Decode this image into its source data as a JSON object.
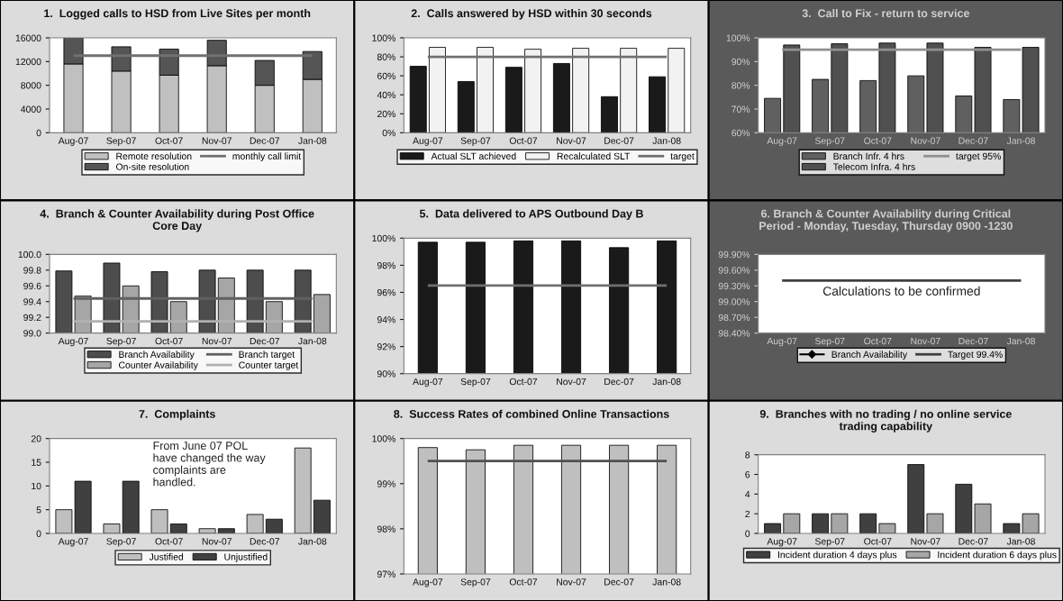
{
  "chart_data": [
    {
      "type": "bar",
      "title": "1.  Logged calls to HSD from Live Sites per month",
      "categories": [
        "Aug-07",
        "Sep-07",
        "Oct-07",
        "Nov-07",
        "Dec-07",
        "Jan-08"
      ],
      "stacked": true,
      "series": [
        {
          "name": "Remote resolution",
          "color": "#c0c0c0",
          "values": [
            11600,
            10400,
            9700,
            11300,
            8000,
            9000
          ]
        },
        {
          "name": "On-site resolution",
          "color": "#555555",
          "values": [
            4400,
            4100,
            4400,
            4300,
            4200,
            4700
          ]
        }
      ],
      "ylim": [
        0,
        16000
      ],
      "yticks": [
        0,
        4000,
        8000,
        12000,
        16000
      ],
      "ref_lines": [
        {
          "axis": "y",
          "value": 13000,
          "label": "monthly call limit",
          "color": "#707070"
        }
      ],
      "legend": "bottom"
    },
    {
      "type": "bar",
      "title": "2.  Calls answered by HSD within 30 seconds",
      "categories": [
        "Aug-07",
        "Sep-07",
        "Oct-07",
        "Nov-07",
        "Dec-07",
        "Jan-08"
      ],
      "series": [
        {
          "name": "Actual SLT achieved",
          "color": "#1a1a1a",
          "values": [
            70,
            54,
            69,
            73,
            38,
            59
          ]
        },
        {
          "name": "Recalculated SLT",
          "color": "#f2f2f2",
          "values": [
            90,
            90,
            88,
            89,
            89,
            89
          ]
        }
      ],
      "ylim": [
        0,
        100
      ],
      "yticks": [
        {
          "value": 0,
          "label": "0%"
        },
        {
          "value": 20,
          "label": "20%"
        },
        {
          "value": 40,
          "label": "40%"
        },
        {
          "value": 60,
          "label": "60%"
        },
        {
          "value": 80,
          "label": "80%"
        },
        {
          "value": 100,
          "label": "100%"
        }
      ],
      "ref_lines": [
        {
          "axis": "y",
          "value": 80,
          "label": "target",
          "color": "#707070"
        }
      ],
      "legend": "bottom"
    },
    {
      "type": "bar",
      "title": "3.  Call to Fix - return to service",
      "categories": [
        "Aug-07",
        "Sep-07",
        "Oct-07",
        "Nov-07",
        "Dec-07",
        "Jan-08"
      ],
      "series": [
        {
          "name": "Branch Infr. 4 hrs",
          "color": "#606060",
          "values": [
            74.5,
            82.5,
            82,
            84,
            75.5,
            74
          ]
        },
        {
          "name": "Telecom Infra. 4 hrs",
          "color": "#505050",
          "values": [
            97,
            97.5,
            97.8,
            97.8,
            96,
            96
          ]
        }
      ],
      "ylim": [
        60,
        100
      ],
      "yticks": [
        {
          "value": 60,
          "label": "60%"
        },
        {
          "value": 70,
          "label": "70%"
        },
        {
          "value": 80,
          "label": "80%"
        },
        {
          "value": 90,
          "label": "90%"
        },
        {
          "value": 100,
          "label": "100%"
        }
      ],
      "ref_lines": [
        {
          "axis": "y",
          "value": 95,
          "label": "target 95%",
          "color": "#909090"
        }
      ],
      "legend": "bottom"
    },
    {
      "type": "bar",
      "title": "4.  Branch & Counter Availability during Post Office Core Day",
      "categories": [
        "Aug-07",
        "Sep-07",
        "Oct-07",
        "Nov-07",
        "Dec-07",
        "Jan-08"
      ],
      "series": [
        {
          "name": "Branch Availability",
          "color": "#4d4d4d",
          "values": [
            99.79,
            99.89,
            99.78,
            99.8,
            99.8,
            99.8
          ]
        },
        {
          "name": "Counter Availability",
          "color": "#a6a6a6",
          "values": [
            99.47,
            99.6,
            99.4,
            99.7,
            99.4,
            99.49
          ]
        }
      ],
      "ylim": [
        99.0,
        100.0
      ],
      "yticks": [
        {
          "value": 99.0,
          "label": "99.0"
        },
        {
          "value": 99.2,
          "label": "99.2"
        },
        {
          "value": 99.4,
          "label": "99.4"
        },
        {
          "value": 99.6,
          "label": "99.6"
        },
        {
          "value": 99.8,
          "label": "99.8"
        },
        {
          "value": 100.0,
          "label": "100.0"
        }
      ],
      "ref_lines": [
        {
          "axis": "y",
          "value": 99.44,
          "label": "Branch target",
          "color": "#606060"
        },
        {
          "axis": "y",
          "value": 99.15,
          "label": "Counter target",
          "color": "#b0b0b0"
        }
      ],
      "legend": "bottom"
    },
    {
      "type": "bar",
      "title": "5.  Data delivered to APS Outbound Day B",
      "categories": [
        "Aug-07",
        "Sep-07",
        "Oct-07",
        "Nov-07",
        "Dec-07",
        "Jan-08"
      ],
      "series": [
        {
          "color": "#1a1a1a",
          "values": [
            99.7,
            99.7,
            99.8,
            99.8,
            99.3,
            99.8
          ]
        }
      ],
      "ylim": [
        90,
        100
      ],
      "yticks": [
        {
          "value": 90,
          "label": "90%"
        },
        {
          "value": 92,
          "label": "92%"
        },
        {
          "value": 94,
          "label": "94%"
        },
        {
          "value": 96,
          "label": "96%"
        },
        {
          "value": 98,
          "label": "98%"
        },
        {
          "value": 100,
          "label": "100%"
        }
      ],
      "ref_lines": [
        {
          "axis": "y",
          "value": 96.5,
          "color": "#707070"
        }
      ]
    },
    {
      "type": "line",
      "title": "6. Branch & Counter Availability during Critical Period - Monday, Tuesday, Thursday 0900 -1230",
      "categories": [
        "Aug-07",
        "Sep-07",
        "Oct-07",
        "Nov-07",
        "Dec-07",
        "Jan-08"
      ],
      "marker": "diamond",
      "series": [
        {
          "name": "Branch Availability",
          "color": "#000000",
          "values": [
            null,
            null,
            null,
            null,
            null,
            null
          ]
        }
      ],
      "ylim": [
        98.4,
        99.9
      ],
      "yticks": [
        {
          "value": 98.4,
          "label": "98.40%"
        },
        {
          "value": 98.7,
          "label": "98.70%"
        },
        {
          "value": 99.0,
          "label": "99.00%"
        },
        {
          "value": 99.3,
          "label": "99.30%"
        },
        {
          "value": 99.6,
          "label": "99.60%"
        },
        {
          "value": 99.9,
          "label": "99.90%"
        }
      ],
      "ref_lines": [
        {
          "axis": "y",
          "value": 99.4,
          "label": "Target 99.4%",
          "color": "#404040"
        }
      ],
      "annotations": [
        "Calculations to be confirmed"
      ],
      "legend": "bottom"
    },
    {
      "type": "bar",
      "title": "7.  Complaints",
      "categories": [
        "Aug-07",
        "Sep-07",
        "Oct-07",
        "Nov-07",
        "Dec-07",
        "Jan-08"
      ],
      "series": [
        {
          "name": "Justified",
          "color": "#bfbfbf",
          "values": [
            5,
            2,
            5,
            1,
            4,
            18
          ]
        },
        {
          "name": "Unjustified",
          "color": "#404040",
          "values": [
            11,
            11,
            2,
            1,
            3,
            7
          ]
        }
      ],
      "ylim": [
        0,
        20
      ],
      "yticks": [
        0,
        5,
        10,
        15,
        20
      ],
      "annotations": [
        "From June 07 POL have changed the way complaints are handled."
      ],
      "legend": "bottom"
    },
    {
      "type": "bar",
      "title": "8.  Success Rates of combined Online Transactions",
      "categories": [
        "Aug-07",
        "Sep-07",
        "Oct-07",
        "Nov-07",
        "Dec-07",
        "Jan-08"
      ],
      "series": [
        {
          "color": "#bfbfbf",
          "values": [
            99.8,
            99.75,
            99.85,
            99.85,
            99.85,
            99.85
          ]
        }
      ],
      "ylim": [
        97,
        100
      ],
      "yticks": [
        {
          "value": 97,
          "label": "97%"
        },
        {
          "value": 98,
          "label": "98%"
        },
        {
          "value": 99,
          "label": "99%"
        },
        {
          "value": 100,
          "label": "100%"
        }
      ],
      "ref_lines": [
        {
          "axis": "y",
          "value": 99.5,
          "color": "#505050"
        }
      ]
    },
    {
      "type": "bar",
      "title": "9.  Branches with no trading / no online service trading capability",
      "categories": [
        "Aug-07",
        "Sep-07",
        "Oct-07",
        "Nov-07",
        "Dec-07",
        "Jan-08"
      ],
      "series": [
        {
          "name": "Incident duration 4 days plus",
          "color": "#404040",
          "values": [
            1,
            2,
            2,
            7,
            5,
            1
          ]
        },
        {
          "name": "Incident duration 6 days plus",
          "color": "#a6a6a6",
          "values": [
            2,
            2,
            1,
            2,
            3,
            2
          ]
        }
      ],
      "ylim": [
        0,
        8
      ],
      "yticks": [
        0,
        2,
        4,
        6,
        8
      ],
      "legend": "bottom"
    }
  ]
}
